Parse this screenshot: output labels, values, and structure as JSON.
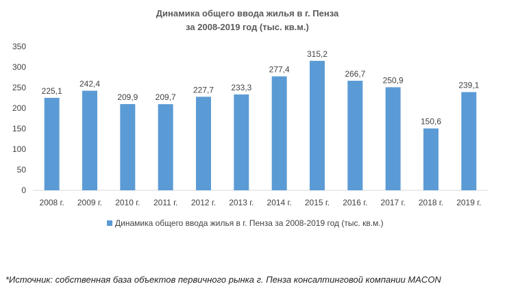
{
  "chart_data": {
    "type": "bar",
    "title_line1": "Динамика общего ввода жилья в г. Пенза",
    "title_line2": "за 2008-2019 год (тыс. кв.м.)",
    "categories": [
      "2008 г.",
      "2009 г.",
      "2010 г.",
      "2011 г.",
      "2012 г.",
      "2013 г.",
      "2014 г.",
      "2015 г.",
      "2016 г.",
      "2017 г.",
      "2018 г.",
      "2019 г."
    ],
    "series": [
      {
        "name": "Динамика общего ввода жилья в г. Пенза за 2008-2019 год (тыс. кв.м.)",
        "values": [
          225.1,
          242.4,
          209.9,
          209.7,
          227.7,
          233.3,
          277.4,
          315.2,
          266.7,
          250.9,
          150.6,
          239.1
        ],
        "labels": [
          "225,1",
          "242,4",
          "209,9",
          "209,7",
          "227,7",
          "233,3",
          "277,4",
          "315,2",
          "266,7",
          "250,9",
          "150,6",
          "239,1"
        ],
        "color": "#5b9bd5"
      }
    ],
    "ylim": [
      0,
      350
    ],
    "yticks": [
      0,
      50,
      100,
      150,
      200,
      250,
      300,
      350
    ],
    "grid": false,
    "legend": "bottom"
  },
  "source_note": "*Источник: собственная база объектов первичного рынка г. Пенза консалтинговой компании MACON"
}
